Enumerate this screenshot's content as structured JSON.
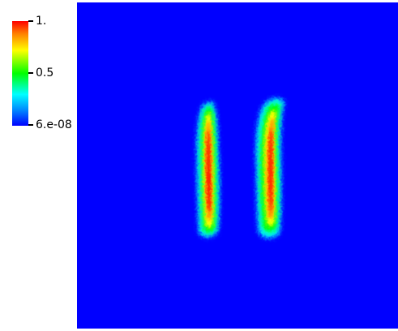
{
  "colormap": {
    "colors": {
      "max": "#ff0000",
      "upper": "#ffff00",
      "mid": "#00ff00",
      "lower": "#00ffff",
      "min": "#0000ff"
    },
    "labels": {
      "max": "1.",
      "mid": "0.5",
      "min": "6.e-08"
    }
  },
  "field": {
    "background": "#0000ff",
    "features": [
      {
        "name": "left-bar",
        "shape": "vertical elongated band, slightly curved"
      },
      {
        "name": "right-bar",
        "shape": "vertical elongated band, slightly curved"
      }
    ]
  }
}
